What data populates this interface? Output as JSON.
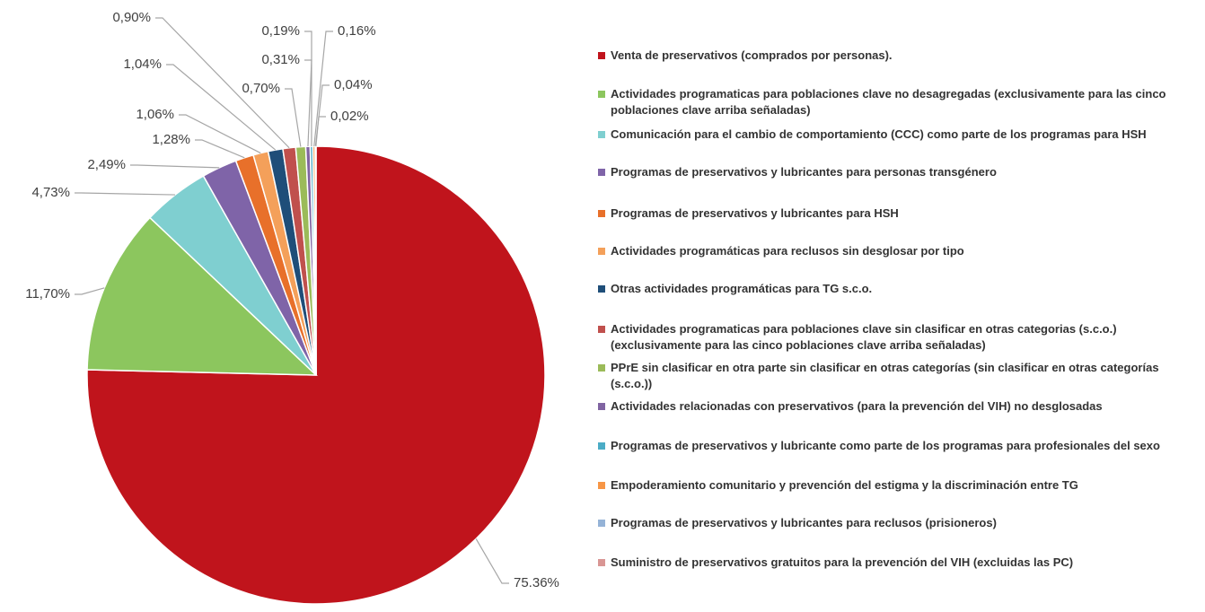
{
  "chart_data": {
    "type": "pie",
    "categories": [
      "Venta de preservativos (comprados por personas).",
      "Actividades programaticas para poblaciones clave no desagregadas (exclusivamente para las cinco poblaciones clave arriba señaladas)",
      "Comunicación para el cambio de comportamiento (CCC) como parte de los programas para HSH",
      "Programas de preservativos y lubricantes para personas transgénero",
      "Programas de preservativos y lubricantes para HSH",
      "Actividades programáticas para reclusos sin desglosar por tipo",
      "Otras actividades programáticas para TG s.c.o.",
      "Actividades programaticas para poblaciones clave sin clasificar en otras categorias (s.c.o.) (exclusivamente para las cinco poblaciones clave arriba señaladas)",
      "PPrE sin clasificar en otra parte sin clasificar en otras categorías (sin clasificar en otras categorías (s.c.o.))",
      "Actividades relacionadas con preservativos (para la prevención del VIH) no desglosadas",
      "Programas de preservativos y lubricante como parte de los programas para profesionales del sexo",
      "Empoderamiento comunitario y prevención del estigma y la discriminación entre TG",
      "Programas de preservativos y lubricantes para reclusos (prisioneros)",
      "Suministro de preservativos gratuitos para la prevención del VIH (excluidas las PC)"
    ],
    "values": [
      75.36,
      11.7,
      4.73,
      2.49,
      1.28,
      1.06,
      1.04,
      0.9,
      0.7,
      0.31,
      0.19,
      0.16,
      0.04,
      0.02
    ],
    "value_labels": [
      "75.36%",
      "11,70%",
      "4,73%",
      "2,49%",
      "1,28%",
      "1,06%",
      "1,04%",
      "0,90%",
      "0,70%",
      "0,31%",
      "0,19%",
      "0,16%",
      "0,04%",
      "0,02%"
    ],
    "colors": [
      "#c0141c",
      "#8cc65e",
      "#7fcfd0",
      "#7f64a8",
      "#e8702a",
      "#f4a05a",
      "#1f4e79",
      "#c0504d",
      "#9bbb59",
      "#8064a2",
      "#4bacc6",
      "#f79646",
      "#95b3d7",
      "#d99694"
    ]
  }
}
